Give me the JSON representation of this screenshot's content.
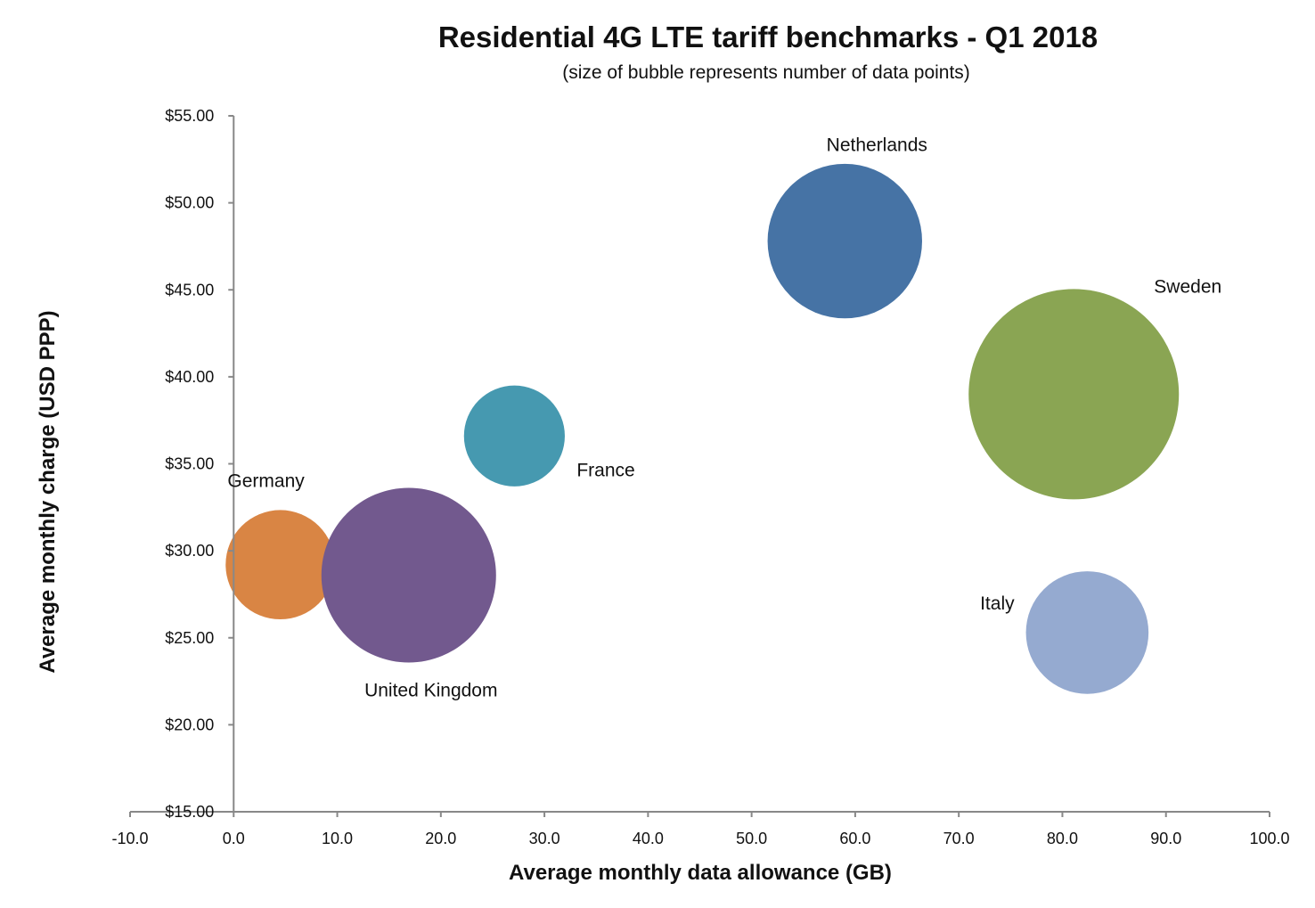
{
  "chart_data": {
    "type": "bubble",
    "title": "Residential 4G LTE tariff benchmarks - Q1 2018",
    "subtitle": "(size of bubble represents number of data points)",
    "xlabel": "Average monthly data allowance (GB)",
    "ylabel": "Average monthly charge (USD PPP)",
    "xlim": [
      -10,
      100
    ],
    "ylim": [
      15,
      55
    ],
    "x_ticks": [
      "-10.0",
      "0.0",
      "10.0",
      "20.0",
      "30.0",
      "40.0",
      "50.0",
      "60.0",
      "70.0",
      "80.0",
      "90.0",
      "100.0"
    ],
    "y_ticks": [
      "$15.00",
      "$20.00",
      "$25.00",
      "$30.00",
      "$35.00",
      "$40.00",
      "$45.00",
      "$50.00",
      "$55.00"
    ],
    "grid": false,
    "legend": "none",
    "points": [
      {
        "label": "Germany",
        "x": 4.5,
        "y": 29.2,
        "size": 27,
        "color": "#D98544"
      },
      {
        "label": "United Kingdom",
        "x": 16.9,
        "y": 28.6,
        "size": 69,
        "color": "#72598E"
      },
      {
        "label": "France",
        "x": 27.1,
        "y": 36.6,
        "size": 23,
        "color": "#4699B0"
      },
      {
        "label": "Netherlands",
        "x": 59.0,
        "y": 47.8,
        "size": 54,
        "color": "#4673A5"
      },
      {
        "label": "Sweden",
        "x": 81.1,
        "y": 39.0,
        "size": 100,
        "color": "#8AA553"
      },
      {
        "label": "Italy",
        "x": 82.4,
        "y": 25.3,
        "size": 34,
        "color": "#95AAD0"
      }
    ]
  }
}
